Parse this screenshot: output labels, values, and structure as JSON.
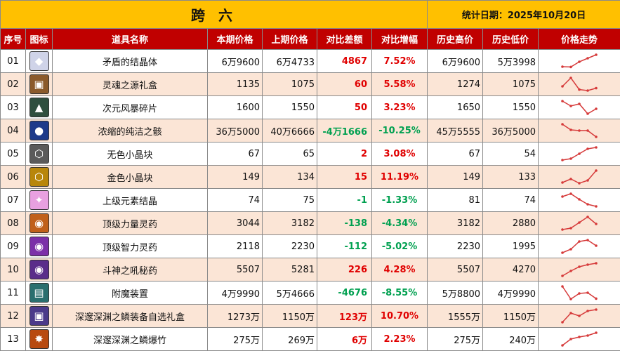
{
  "title": "跨 六",
  "date_label": "统计日期：2025年10月20日",
  "headers": [
    "序号",
    "图标",
    "道具名称",
    "本期价格",
    "上期价格",
    "对比差额",
    "对比增幅",
    "历史高价",
    "历史低价",
    "价格走势"
  ],
  "colors": {
    "header_bg": "#c00000",
    "title_bg": "#ffc000",
    "row_alt": "#fbe5d6",
    "up": "#e00000",
    "down": "#00a050",
    "spark": "#d63a3a"
  },
  "rows": [
    {
      "idx": "01",
      "name": "矛盾的结晶体",
      "cur": "6万9600",
      "prev": "6万4733",
      "diff": "4867",
      "pct": "7.52%",
      "dir": "up",
      "high": "6万9600",
      "low": "5万3998",
      "icon": "crystal-icon",
      "glyph": "◆",
      "ibg": "#cfd3e8",
      "trend": [
        0.1,
        0.08,
        0.45,
        0.7,
        0.95
      ]
    },
    {
      "idx": "02",
      "name": "灵魂之源礼盒",
      "cur": "1135",
      "prev": "1075",
      "diff": "60",
      "pct": "5.58%",
      "dir": "up",
      "high": "1274",
      "low": "1075",
      "icon": "gift-box-icon",
      "glyph": "▣",
      "ibg": "#8b5a2b",
      "trend": [
        0.35,
        0.95,
        0.12,
        0.05,
        0.22
      ]
    },
    {
      "idx": "03",
      "name": "次元风暴碎片",
      "cur": "1600",
      "prev": "1550",
      "diff": "50",
      "pct": "3.23%",
      "dir": "up",
      "high": "1650",
      "low": "1550",
      "icon": "shard-icon",
      "glyph": "▲",
      "ibg": "#2f4f3f",
      "trend": [
        0.95,
        0.6,
        0.75,
        0.05,
        0.4
      ]
    },
    {
      "idx": "04",
      "name": "浓缩的纯洁之骸",
      "cur": "36万5000",
      "prev": "40万6666",
      "diff": "-4万1666",
      "pct": "-10.25%",
      "dir": "down",
      "high": "45万5555",
      "low": "36万5000",
      "icon": "orb-icon",
      "glyph": "●",
      "ibg": "#1e3a8a",
      "trend": [
        0.95,
        0.55,
        0.5,
        0.5,
        0.05
      ]
    },
    {
      "idx": "05",
      "name": "无色小晶块",
      "cur": "67",
      "prev": "65",
      "diff": "2",
      "pct": "3.08%",
      "dir": "up",
      "high": "67",
      "low": "54",
      "icon": "grey-cube-icon",
      "glyph": "⬡",
      "ibg": "#5a5a5a",
      "trend": [
        0.05,
        0.15,
        0.5,
        0.85,
        0.95
      ]
    },
    {
      "idx": "06",
      "name": "金色小晶块",
      "cur": "149",
      "prev": "134",
      "diff": "15",
      "pct": "11.19%",
      "dir": "up",
      "high": "149",
      "low": "133",
      "icon": "gold-cube-icon",
      "glyph": "⬡",
      "ibg": "#b8860b",
      "trend": [
        0.1,
        0.35,
        0.05,
        0.25,
        0.95
      ]
    },
    {
      "idx": "07",
      "name": "上级元素结晶",
      "cur": "74",
      "prev": "75",
      "diff": "-1",
      "pct": "-1.33%",
      "dir": "down",
      "high": "81",
      "low": "74",
      "icon": "pink-crystal-icon",
      "glyph": "✦",
      "ibg": "#e8a0e0",
      "trend": [
        0.75,
        0.95,
        0.55,
        0.2,
        0.05
      ]
    },
    {
      "idx": "08",
      "name": "顶级力量灵药",
      "cur": "3044",
      "prev": "3182",
      "diff": "-138",
      "pct": "-4.34%",
      "dir": "down",
      "high": "3182",
      "low": "2880",
      "icon": "strength-potion-icon",
      "glyph": "◉",
      "ibg": "#c0601a",
      "trend": [
        0.05,
        0.15,
        0.55,
        0.95,
        0.45
      ]
    },
    {
      "idx": "09",
      "name": "顶级智力灵药",
      "cur": "2118",
      "prev": "2230",
      "diff": "-112",
      "pct": "-5.02%",
      "dir": "down",
      "high": "2230",
      "low": "1995",
      "icon": "intelligence-potion-icon",
      "glyph": "◉",
      "ibg": "#7b2fa8",
      "trend": [
        0.05,
        0.3,
        0.85,
        0.95,
        0.55
      ]
    },
    {
      "idx": "10",
      "name": "斗神之吼秘药",
      "cur": "5507",
      "prev": "5281",
      "diff": "226",
      "pct": "4.28%",
      "dir": "up",
      "high": "5507",
      "low": "4270",
      "icon": "battle-potion-icon",
      "glyph": "◉",
      "ibg": "#5a2d8a",
      "trend": [
        0.05,
        0.4,
        0.7,
        0.85,
        0.95
      ]
    },
    {
      "idx": "11",
      "name": "附魔装置",
      "cur": "4万9990",
      "prev": "5万4666",
      "diff": "-4676",
      "pct": "-8.55%",
      "dir": "down",
      "high": "5万8800",
      "low": "4万9990",
      "icon": "enchant-device-icon",
      "glyph": "▤",
      "ibg": "#2a6f6f",
      "trend": [
        0.95,
        0.05,
        0.45,
        0.5,
        0.08
      ]
    },
    {
      "idx": "12",
      "name": "深邃深渊之鳞装备自选礼盒",
      "cur": "1273万",
      "prev": "1150万",
      "diff": "123万",
      "pct": "10.70%",
      "dir": "up",
      "high": "1555万",
      "low": "1150万",
      "icon": "abyss-box-icon",
      "glyph": "▣",
      "ibg": "#4b3a8a",
      "trend": [
        0.05,
        0.7,
        0.5,
        0.85,
        0.95
      ]
    },
    {
      "idx": "13",
      "name": "深邃深渊之鳞爆竹",
      "cur": "275万",
      "prev": "269万",
      "diff": "6万",
      "pct": "2.23%",
      "dir": "up",
      "high": "275万",
      "low": "240万",
      "icon": "firecracker-icon",
      "glyph": "✸",
      "ibg": "#b84a10",
      "trend": [
        0.05,
        0.5,
        0.65,
        0.75,
        0.95
      ]
    }
  ]
}
